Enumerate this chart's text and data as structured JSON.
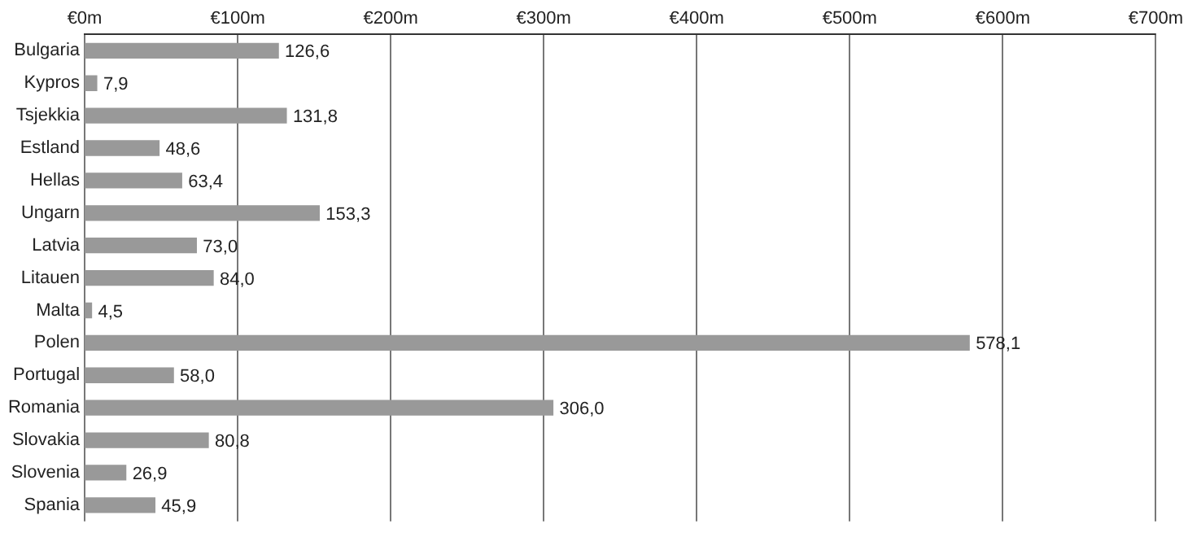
{
  "chart_data": {
    "type": "bar",
    "orientation": "horizontal",
    "categories": [
      "Bulgaria",
      "Kypros",
      "Tsjekkia",
      "Estland",
      "Hellas",
      "Ungarn",
      "Latvia",
      "Litauen",
      "Malta",
      "Polen",
      "Portugal",
      "Romania",
      "Slovakia",
      "Slovenia",
      "Spania"
    ],
    "values": [
      126.6,
      7.9,
      131.8,
      48.6,
      63.4,
      153.3,
      73.0,
      84.0,
      4.5,
      578.1,
      58.0,
      306.0,
      80.8,
      26.9,
      45.9
    ],
    "value_labels": [
      "126,6",
      "7,9",
      "131,8",
      "48,6",
      "63,4",
      "153,3",
      "73,0",
      "84,0",
      "4,5",
      "578,1",
      "58,0",
      "306,0",
      "80,8",
      "26,9",
      "45,9"
    ],
    "color": "#999999",
    "xlim": [
      0,
      700
    ],
    "xticks": [
      {
        "value": 0,
        "label": "€0m"
      },
      {
        "value": 100,
        "label": "€100m"
      },
      {
        "value": 200,
        "label": "€200m"
      },
      {
        "value": 300,
        "label": "€300m"
      },
      {
        "value": 400,
        "label": "€400m"
      },
      {
        "value": 500,
        "label": "€500m"
      },
      {
        "value": 600,
        "label": "€600m"
      },
      {
        "value": 700,
        "label": "€700m"
      }
    ],
    "grid": "x",
    "legend": false
  }
}
